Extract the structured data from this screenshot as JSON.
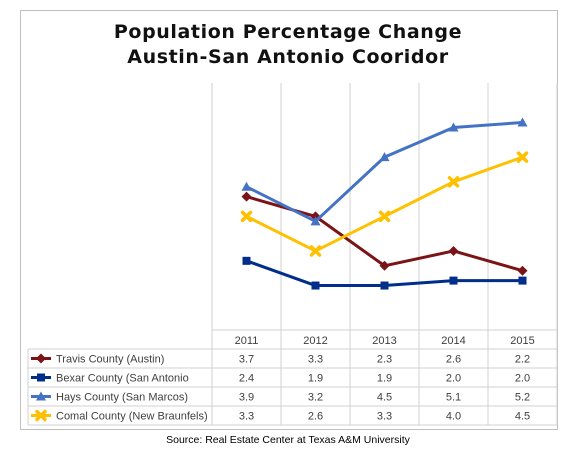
{
  "chart_data": {
    "type": "line",
    "title": "Population Percentage Change",
    "subtitle": "Austin-San Antonio Cooridor",
    "categories": [
      "2011",
      "2012",
      "2013",
      "2014",
      "2015"
    ],
    "series": [
      {
        "name": "Travis County (Austin)",
        "values": [
          3.7,
          3.3,
          2.3,
          2.6,
          2.2
        ],
        "color": "#7b1416",
        "marker": "diamond"
      },
      {
        "name": "Bexar County (San Antonio",
        "values": [
          2.4,
          1.9,
          1.9,
          2.0,
          2.0
        ],
        "color": "#002e8a",
        "marker": "square"
      },
      {
        "name": "Hays County (San Marcos)",
        "values": [
          3.9,
          3.2,
          4.5,
          5.1,
          5.2
        ],
        "color": "#4472c4",
        "marker": "triangle"
      },
      {
        "name": "Comal County (New Braunfels)",
        "values": [
          3.3,
          2.6,
          3.3,
          4.0,
          4.5
        ],
        "color": "#ffc000",
        "marker": "x"
      }
    ],
    "value_labels": [
      [
        "3.7",
        "3.3",
        "2.3",
        "2.6",
        "2.2"
      ],
      [
        "2.4",
        "1.9",
        "1.9",
        "2.0",
        "2.0"
      ],
      [
        "3.9",
        "3.2",
        "4.5",
        "5.1",
        "5.2"
      ],
      [
        "3.3",
        "2.6",
        "3.3",
        "4.0",
        "4.5"
      ]
    ],
    "ylim": [
      1.0,
      6.0
    ],
    "grid": "vertical",
    "legend": "data-table",
    "source": "Source: Real Estate Center at Texas A&M University"
  }
}
